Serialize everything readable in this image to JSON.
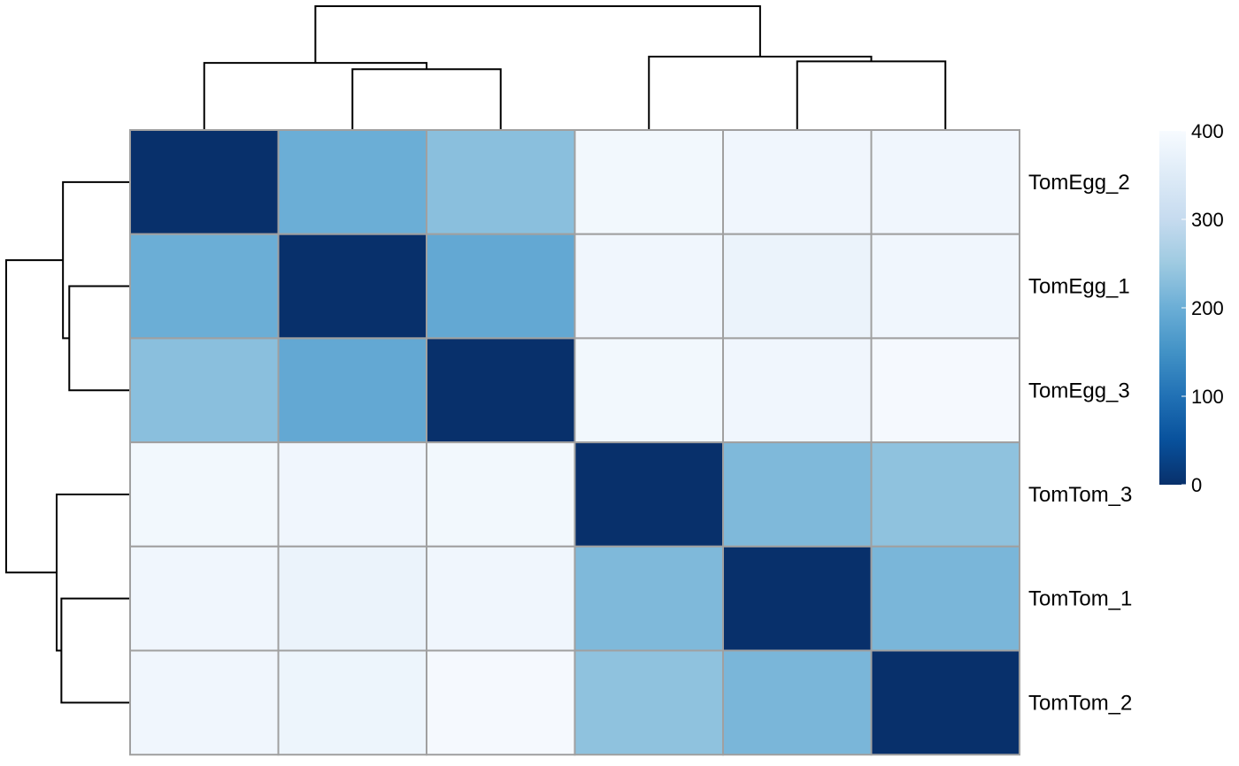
{
  "chart_data": {
    "type": "heatmap",
    "title": "",
    "row_labels": [
      "TomEgg_2",
      "TomEgg_1",
      "TomEgg_3",
      "TomTom_3",
      "TomTom_1",
      "TomTom_2"
    ],
    "column_order": [
      "TomEgg_2",
      "TomEgg_1",
      "TomEgg_3",
      "TomTom_3",
      "TomTom_1",
      "TomTom_2"
    ],
    "show_column_labels": false,
    "values": [
      [
        0,
        200,
        230,
        390,
        385,
        385
      ],
      [
        200,
        0,
        190,
        385,
        375,
        385
      ],
      [
        230,
        190,
        0,
        390,
        385,
        395
      ],
      [
        390,
        385,
        390,
        0,
        220,
        235
      ],
      [
        385,
        375,
        385,
        220,
        0,
        215
      ],
      [
        385,
        380,
        395,
        235,
        215,
        0
      ]
    ],
    "color_scale": {
      "min": 0,
      "max": 400,
      "stops": [
        {
          "value": 0,
          "color": "#08306b"
        },
        {
          "value": 50,
          "color": "#08519c"
        },
        {
          "value": 100,
          "color": "#2171b5"
        },
        {
          "value": 150,
          "color": "#4292c6"
        },
        {
          "value": 200,
          "color": "#6baed6"
        },
        {
          "value": 250,
          "color": "#9ecae1"
        },
        {
          "value": 300,
          "color": "#c6dbef"
        },
        {
          "value": 350,
          "color": "#deebf7"
        },
        {
          "value": 400,
          "color": "#f7fbff"
        }
      ],
      "legend_ticks": [
        400,
        300,
        200,
        100,
        0
      ]
    },
    "row_dendrogram": {
      "merges": [
        {
          "a": "TomEgg_1",
          "b": "TomEgg_3",
          "height": 190
        },
        {
          "a": "TomEgg_2",
          "b": "(TomEgg_1,TomEgg_3)",
          "height": 210
        },
        {
          "a": "TomTom_1",
          "b": "TomTom_2",
          "height": 215
        },
        {
          "a": "TomTom_3",
          "b": "(TomTom_1,TomTom_2)",
          "height": 230
        },
        {
          "a": "TomEgg group",
          "b": "TomTom group",
          "height": 390
        }
      ]
    },
    "column_dendrogram": {
      "merges": [
        {
          "a": "TomEgg_1",
          "b": "TomEgg_3",
          "height": 190
        },
        {
          "a": "TomEgg_2",
          "b": "(TomEgg_1,TomEgg_3)",
          "height": 210
        },
        {
          "a": "TomTom_1",
          "b": "TomTom_2",
          "height": 215
        },
        {
          "a": "TomTom_3",
          "b": "(TomTom_1,TomTom_2)",
          "height": 230
        },
        {
          "a": "TomEgg group",
          "b": "TomTom group",
          "height": 390
        }
      ]
    }
  }
}
